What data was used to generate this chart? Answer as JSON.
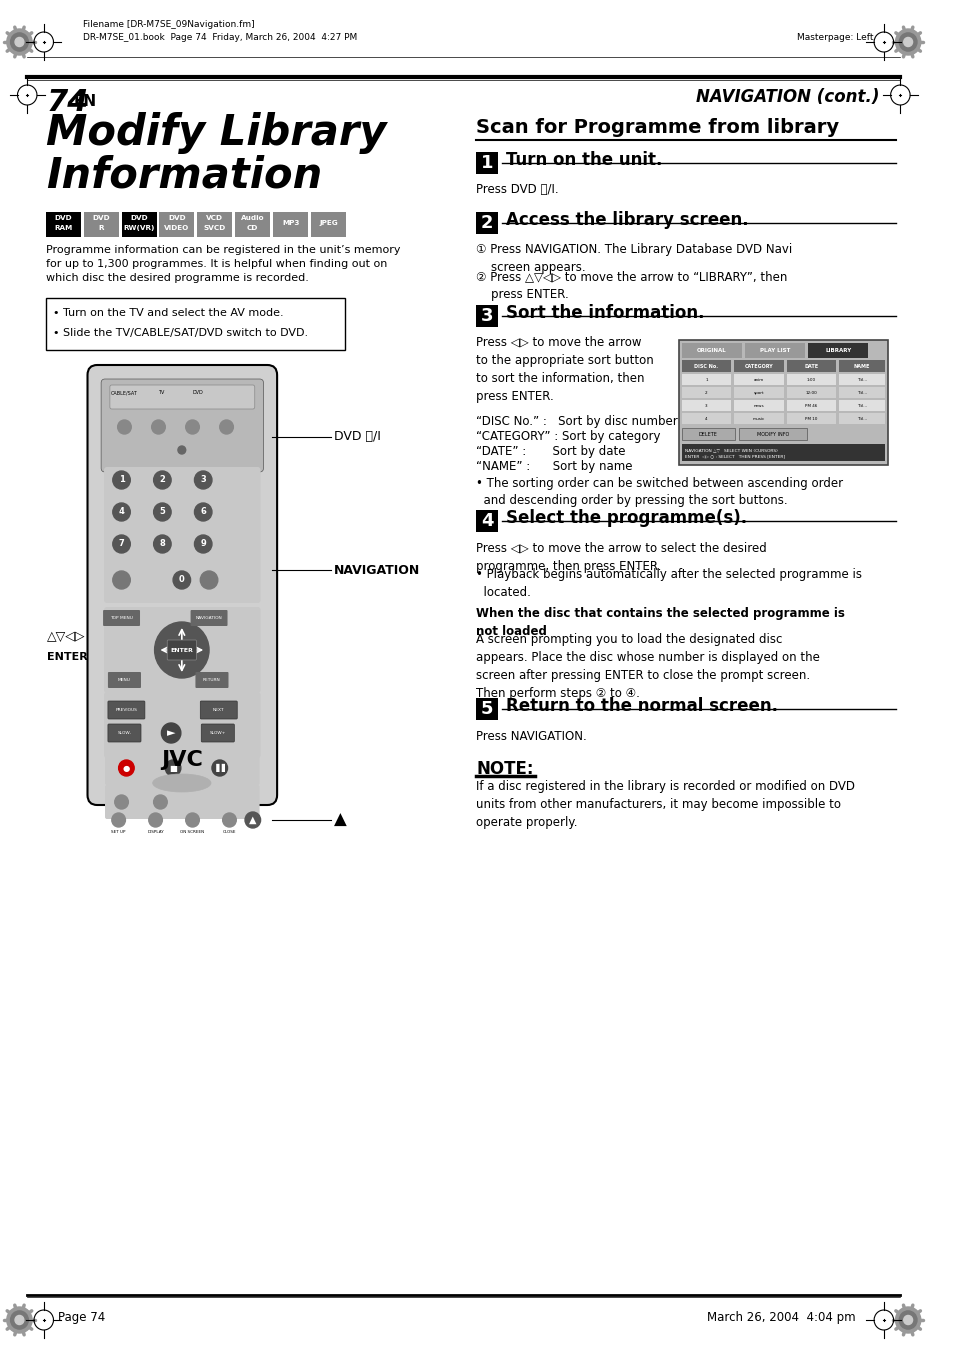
{
  "page_bg": "#ffffff",
  "header_filename": "Filename [DR-M7SE_09Navigation.fm]",
  "header_book": "DR-M7SE_01.book  Page 74  Friday, March 26, 2004  4:27 PM",
  "header_masterpage": "Masterpage: Left",
  "page_num": "74",
  "page_num_suffix": "EN",
  "right_header": "NAVIGATION (cont.)",
  "left_title_line1": "Modify Library",
  "left_title_line2": "Information",
  "format_labels": [
    "DVD\nRAM",
    "DVD\nR",
    "DVD\nRW(VR)",
    "DVD\nVIDEO",
    "VCD\nSVCD",
    "Audio\nCD",
    "MP3",
    "JPEG"
  ],
  "format_active": [
    true,
    false,
    true,
    false,
    false,
    false,
    false,
    false
  ],
  "left_intro": "Programme information can be registered in the unit’s memory\nfor up to 1,300 programmes. It is helpful when finding out on\nwhich disc the desired programme is recorded.",
  "bullet_box_lines": [
    "• Turn on the TV and select the AV mode.",
    "• Slide the TV/CABLE/SAT/DVD switch to DVD."
  ],
  "right_title": "Scan for Programme from library",
  "step1_title": "Turn on the unit.",
  "step1_body": "Press DVD ⏻/I.",
  "step2_title": "Access the library screen.",
  "step2_body_1": "① Press NAVIGATION. The Library Database DVD Navi\n    screen appears.",
  "step2_body_2": "② Press △▽◁▷ to move the arrow to “LIBRARY”, then\n    press ENTER.",
  "step3_title": "Sort the information.",
  "step3_body": "Press ◁▷ to move the arrow\nto the appropriate sort button\nto sort the information, then\npress ENTER.",
  "step3_sort_items": [
    "“DISC No.” :   Sort by disc number",
    "“CATEGORY” : Sort by category",
    "“DATE” :       Sort by date",
    "“NAME” :      Sort by name"
  ],
  "step3_bullet": "• The sorting order can be switched between ascending order\n  and descending order by pressing the sort buttons.",
  "step4_title": "Select the programme(s).",
  "step4_body": "Press ◁▷ to move the arrow to select the desired\nprogramme, then press ENTER.",
  "step4_bullet": "• Playback begins automatically after the selected programme is\n  located.",
  "step4_note_title": "When the disc that contains the selected programme is\nnot loaded",
  "step4_note_body": "A screen prompting you to load the designated disc\nappears. Place the disc whose number is displayed on the\nscreen after pressing ENTER to close the prompt screen.\nThen perform steps ② to ④.",
  "step5_title": "Return to the normal screen.",
  "step5_body": "Press NAVIGATION.",
  "note_title": "NOTE:",
  "note_body": "If a disc registered in the library is recorded or modified on DVD\nunits from other manufacturers, it may become impossible to\noperate properly.",
  "footer_page": "Page 74",
  "footer_date": "March 26, 2004  4:04 pm"
}
